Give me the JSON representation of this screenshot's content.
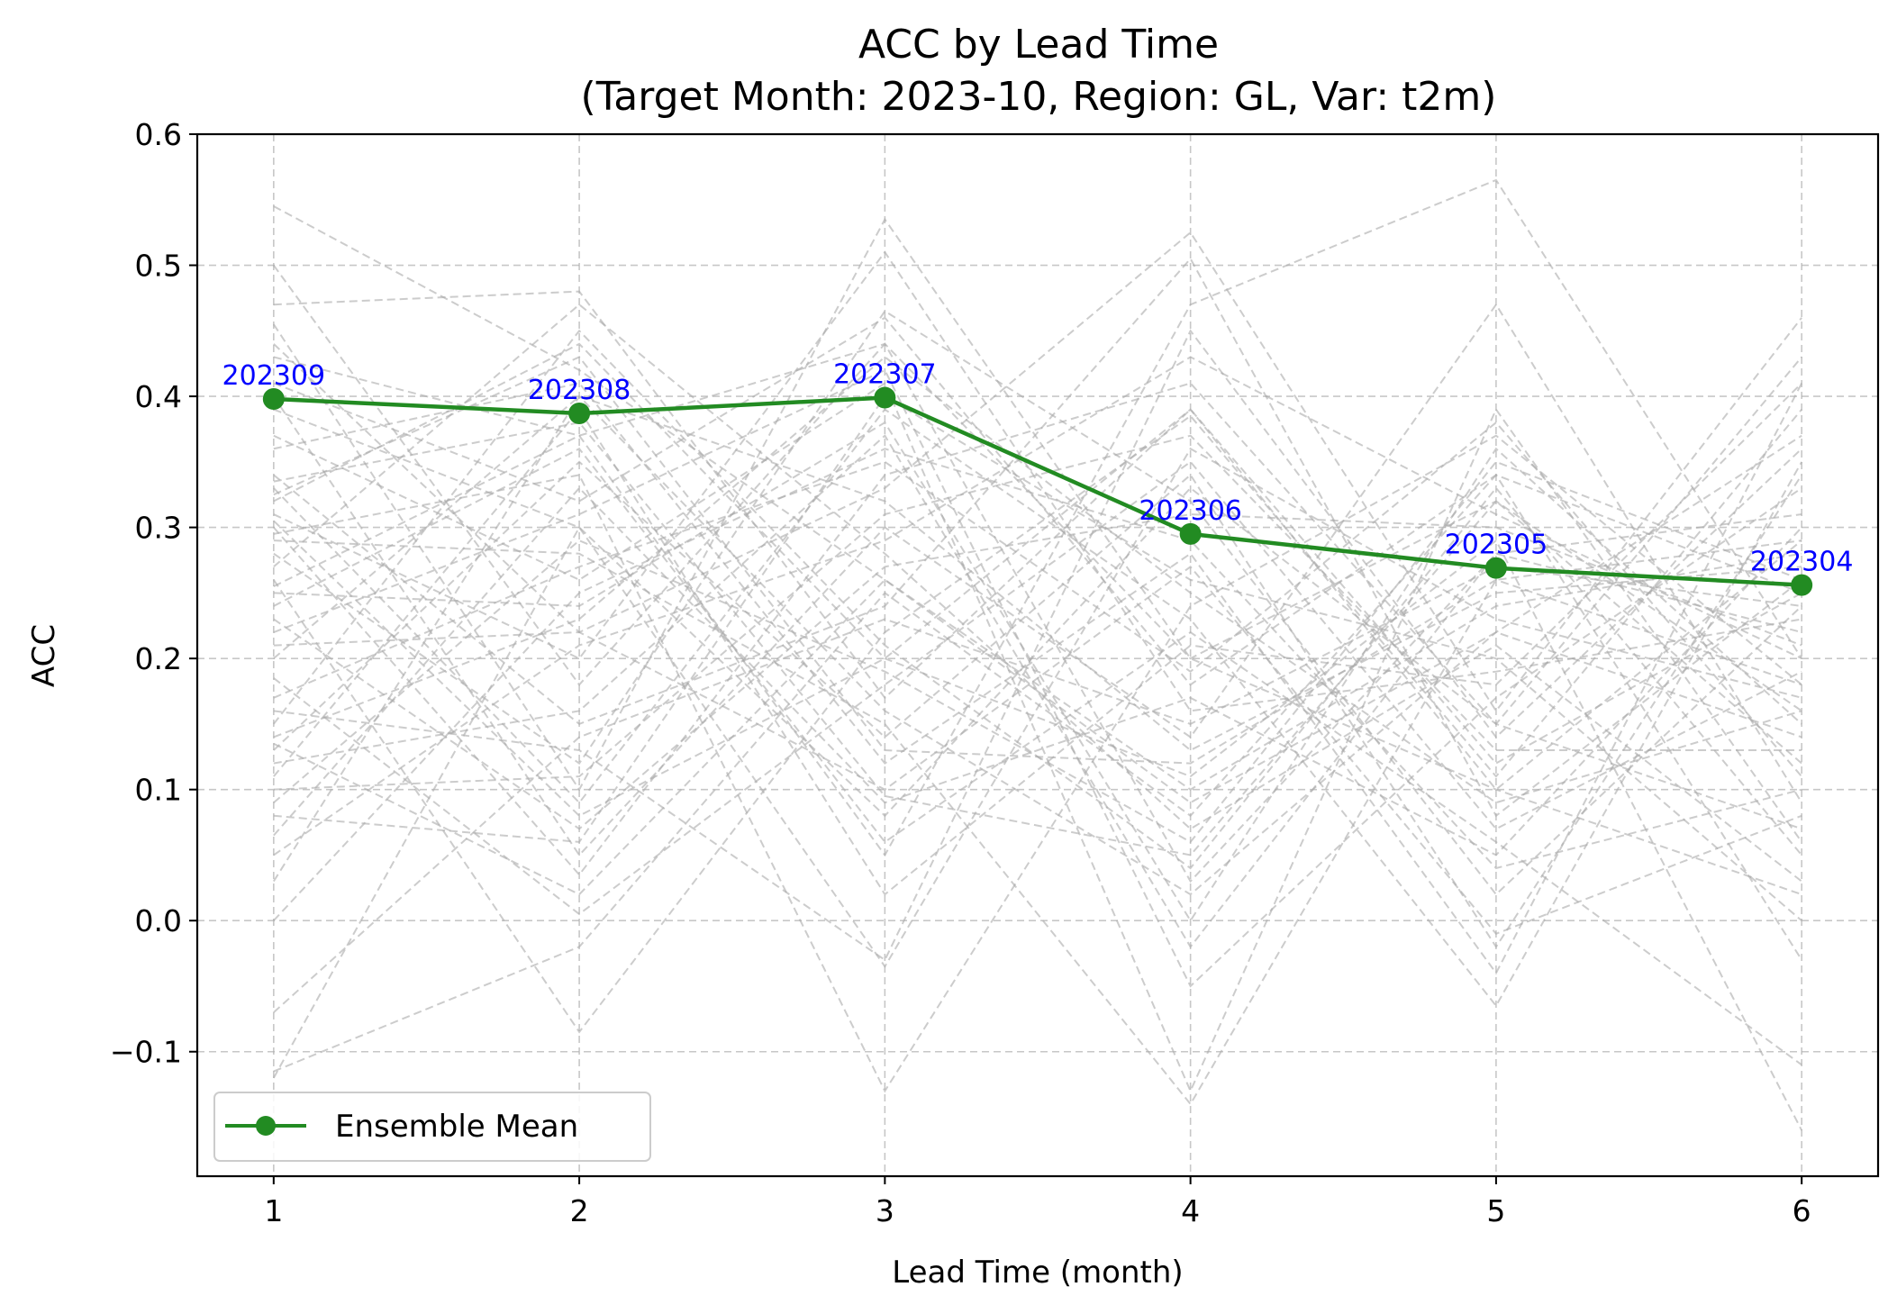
{
  "chart_data": {
    "type": "line",
    "title": "ACC by Lead Time",
    "subtitle": "(Target Month: 2023-10, Region: GL, Var: t2m)",
    "xlabel": "Lead Time (month)",
    "ylabel": "ACC",
    "x": [
      1,
      2,
      3,
      4,
      5,
      6
    ],
    "xlim": [
      0.75,
      6.25
    ],
    "ylim": [
      -0.195,
      0.6
    ],
    "yticks": [
      -0.1,
      0.0,
      0.1,
      0.2,
      0.3,
      0.4,
      0.5,
      0.6
    ],
    "ytick_labels": [
      "−0.1",
      "0.0",
      "0.1",
      "0.2",
      "0.3",
      "0.4",
      "0.5",
      "0.6"
    ],
    "xticks": [
      1,
      2,
      3,
      4,
      5,
      6
    ],
    "xtick_labels": [
      "1",
      "2",
      "3",
      "4",
      "5",
      "6"
    ],
    "grid": true,
    "legend_position": "lower-left",
    "series": [
      {
        "name": "Ensemble Mean",
        "color": "#228b22",
        "values": [
          0.398,
          0.387,
          0.399,
          0.295,
          0.269,
          0.256
        ],
        "point_labels": [
          "202309",
          "202308",
          "202307",
          "202306",
          "202305",
          "202304"
        ]
      }
    ],
    "member_color": "#aaaaaa",
    "members": [
      [
        0.545,
        0.42,
        0.26,
        0.09,
        0.22,
        0.14
      ],
      [
        0.5,
        0.18,
        0.44,
        0.03,
        0.28,
        0.31
      ],
      [
        0.47,
        0.48,
        0.17,
        0.39,
        0.12,
        0.25
      ],
      [
        0.455,
        0.1,
        0.535,
        0.2,
        0.1,
        0.02
      ],
      [
        0.44,
        0.22,
        0.33,
        0.525,
        0.16,
        0.46
      ],
      [
        0.43,
        0.37,
        0.05,
        0.47,
        0.565,
        0.2
      ],
      [
        0.41,
        0.32,
        0.46,
        0.18,
        0.34,
        -0.03
      ],
      [
        0.4,
        0.05,
        0.3,
        0.14,
        0.47,
        0.09
      ],
      [
        0.39,
        0.3,
        -0.035,
        0.36,
        0.23,
        0.17
      ],
      [
        0.37,
        0.26,
        0.41,
        -0.13,
        0.39,
        0.06
      ],
      [
        0.36,
        0.41,
        0.12,
        0.28,
        -0.04,
        0.41
      ],
      [
        0.34,
        0.15,
        0.24,
        0.505,
        0.08,
        0.26
      ],
      [
        0.335,
        0.38,
        0.095,
        0.05,
        0.32,
        0.12
      ],
      [
        0.33,
        0.09,
        0.39,
        0.23,
        -0.065,
        0.35
      ],
      [
        0.32,
        0.44,
        0.2,
        0.11,
        0.29,
        -0.16
      ],
      [
        0.31,
        0.2,
        0.51,
        0.16,
        0.19,
        0.23
      ],
      [
        0.3,
        0.035,
        0.34,
        0.41,
        0.15,
        0.43
      ],
      [
        0.295,
        0.34,
        -0.13,
        0.24,
        0.37,
        0.18
      ],
      [
        0.29,
        0.28,
        0.15,
        -0.14,
        0.26,
        0.29
      ],
      [
        0.28,
        0.12,
        0.465,
        0.32,
        0.02,
        0.24
      ],
      [
        0.27,
        0.47,
        0.28,
        0.07,
        0.21,
        0.03
      ],
      [
        0.26,
        -0.085,
        0.22,
        0.385,
        0.11,
        0.39
      ],
      [
        0.25,
        0.24,
        0.38,
        0.0,
        0.36,
        0.15
      ],
      [
        0.24,
        0.36,
        0.06,
        0.22,
        0.06,
        -0.11
      ],
      [
        0.23,
        0.07,
        0.27,
        0.31,
        0.3,
        0.21
      ],
      [
        0.22,
        0.31,
        0.42,
        -0.05,
        0.17,
        0.33
      ],
      [
        0.21,
        0.22,
        0.1,
        0.27,
        -0.01,
        0.08
      ],
      [
        0.2,
        0.4,
        0.32,
        0.13,
        0.25,
        0.27
      ],
      [
        0.185,
        0.005,
        0.18,
        0.35,
        0.07,
        0.19
      ],
      [
        0.17,
        0.27,
        0.35,
        0.19,
        0.38,
        0.11
      ],
      [
        0.16,
        0.13,
        -0.03,
        0.45,
        0.14,
        0.36
      ],
      [
        0.15,
        0.45,
        0.21,
        0.04,
        0.33,
        0.05
      ],
      [
        0.14,
        0.23,
        0.43,
        0.25,
        0.09,
        0.16
      ],
      [
        0.135,
        0.02,
        0.26,
        0.1,
        0.24,
        0.28
      ],
      [
        0.13,
        0.35,
        0.14,
        0.34,
        -0.02,
        0.34
      ],
      [
        0.12,
        0.16,
        0.37,
        -0.02,
        0.28,
        0.22
      ],
      [
        0.11,
        0.39,
        0.02,
        0.21,
        0.18,
        0.41
      ],
      [
        0.1,
        0.11,
        0.31,
        0.37,
        0.13,
        0.13
      ],
      [
        0.09,
        0.29,
        0.19,
        0.06,
        0.35,
        0.26
      ],
      [
        0.08,
        0.06,
        0.4,
        0.26,
        0.2,
        0.0
      ],
      [
        0.065,
        0.33,
        0.09,
        0.17,
        0.05,
        0.3
      ],
      [
        0.05,
        0.21,
        0.29,
        0.43,
        0.31,
        0.2
      ],
      [
        0.03,
        0.4,
        0.16,
        0.02,
        0.22,
        0.37
      ],
      [
        0.0,
        0.25,
        0.36,
        0.29,
        0.04,
        0.1
      ],
      [
        -0.07,
        0.14,
        0.23,
        0.15,
        0.27,
        0.24
      ],
      [
        -0.12,
        0.3,
        0.08,
        0.33,
        0.15,
        0.07
      ],
      [
        -0.115,
        -0.02,
        0.25,
        0.08,
        0.34,
        0.25
      ],
      [
        0.325,
        0.43,
        0.13,
        0.12,
        0.26,
        0.18
      ],
      [
        0.305,
        0.08,
        0.2,
        0.39,
        0.1,
        0.29
      ],
      [
        0.255,
        0.37,
        0.44,
        0.2,
        0.32,
        0.16
      ]
    ]
  }
}
